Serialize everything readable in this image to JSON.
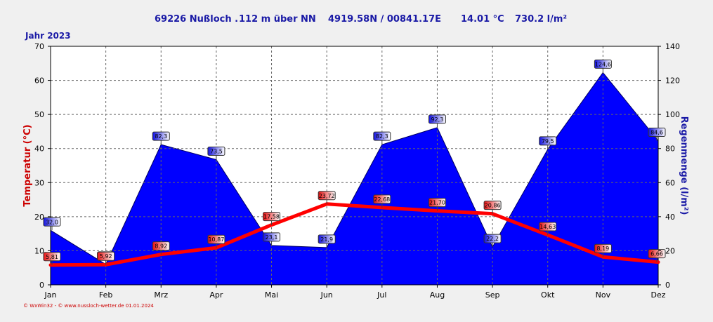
{
  "header": {
    "station": "69226 Nußloch .",
    "elevation": "112 m über NN",
    "coords": "4919.58N / 00841.17E",
    "avg_temp": "14.01 °C",
    "total_rain": "730.2 l/m²"
  },
  "year_label": "Jahr  2023",
  "footer": "© WxWin32 - © www.nussloch-wetter.de   01.01.2024",
  "colors": {
    "temp": "#ff0000",
    "rain_fill": "#0000ff",
    "left_axis": "#cc0000",
    "right_axis": "#1a1aa6"
  },
  "chart_data": {
    "type": "area",
    "categories": [
      "Jan",
      "Feb",
      "Mrz",
      "Apr",
      "Mai",
      "Jun",
      "Jul",
      "Aug",
      "Sep",
      "Okt",
      "Nov",
      "Dez"
    ],
    "ylabel": "Temperatur  (°C)",
    "ylabel_right": "Regenmenge  (l/m²)",
    "ylim": [
      0,
      70
    ],
    "ylim_right": [
      0,
      140
    ],
    "yticks": [
      "0",
      "10",
      "20",
      "30",
      "40",
      "50",
      "60",
      "70"
    ],
    "yticks_right": [
      "0",
      "20",
      "40",
      "60",
      "80",
      "100",
      "120",
      "140"
    ],
    "grid": true,
    "series": [
      {
        "axis": "right",
        "kind": "area",
        "values": [
          32.0,
          12.0,
          82.3,
          73.5,
          23.1,
          21.9,
          82.3,
          92.3,
          22.2,
          79.5,
          124.6,
          84.6
        ],
        "labels": [
          "32,0",
          "12,0",
          "82,3",
          "73,5",
          "23,1",
          "21,9",
          "82,3",
          "92,3",
          "22,2",
          "79,5",
          "124,6",
          "84,6"
        ]
      },
      {
        "axis": "left",
        "kind": "line",
        "values": [
          5.81,
          5.92,
          8.92,
          10.87,
          17.58,
          23.72,
          22.68,
          21.7,
          20.86,
          14.63,
          8.19,
          6.66
        ],
        "labels": [
          "5,81",
          "5,92",
          "8,92",
          "10,87",
          "17,58",
          "23,72",
          "22,68",
          "21,70",
          "20,86",
          "14,63",
          "8,19",
          "6,66"
        ]
      }
    ]
  }
}
